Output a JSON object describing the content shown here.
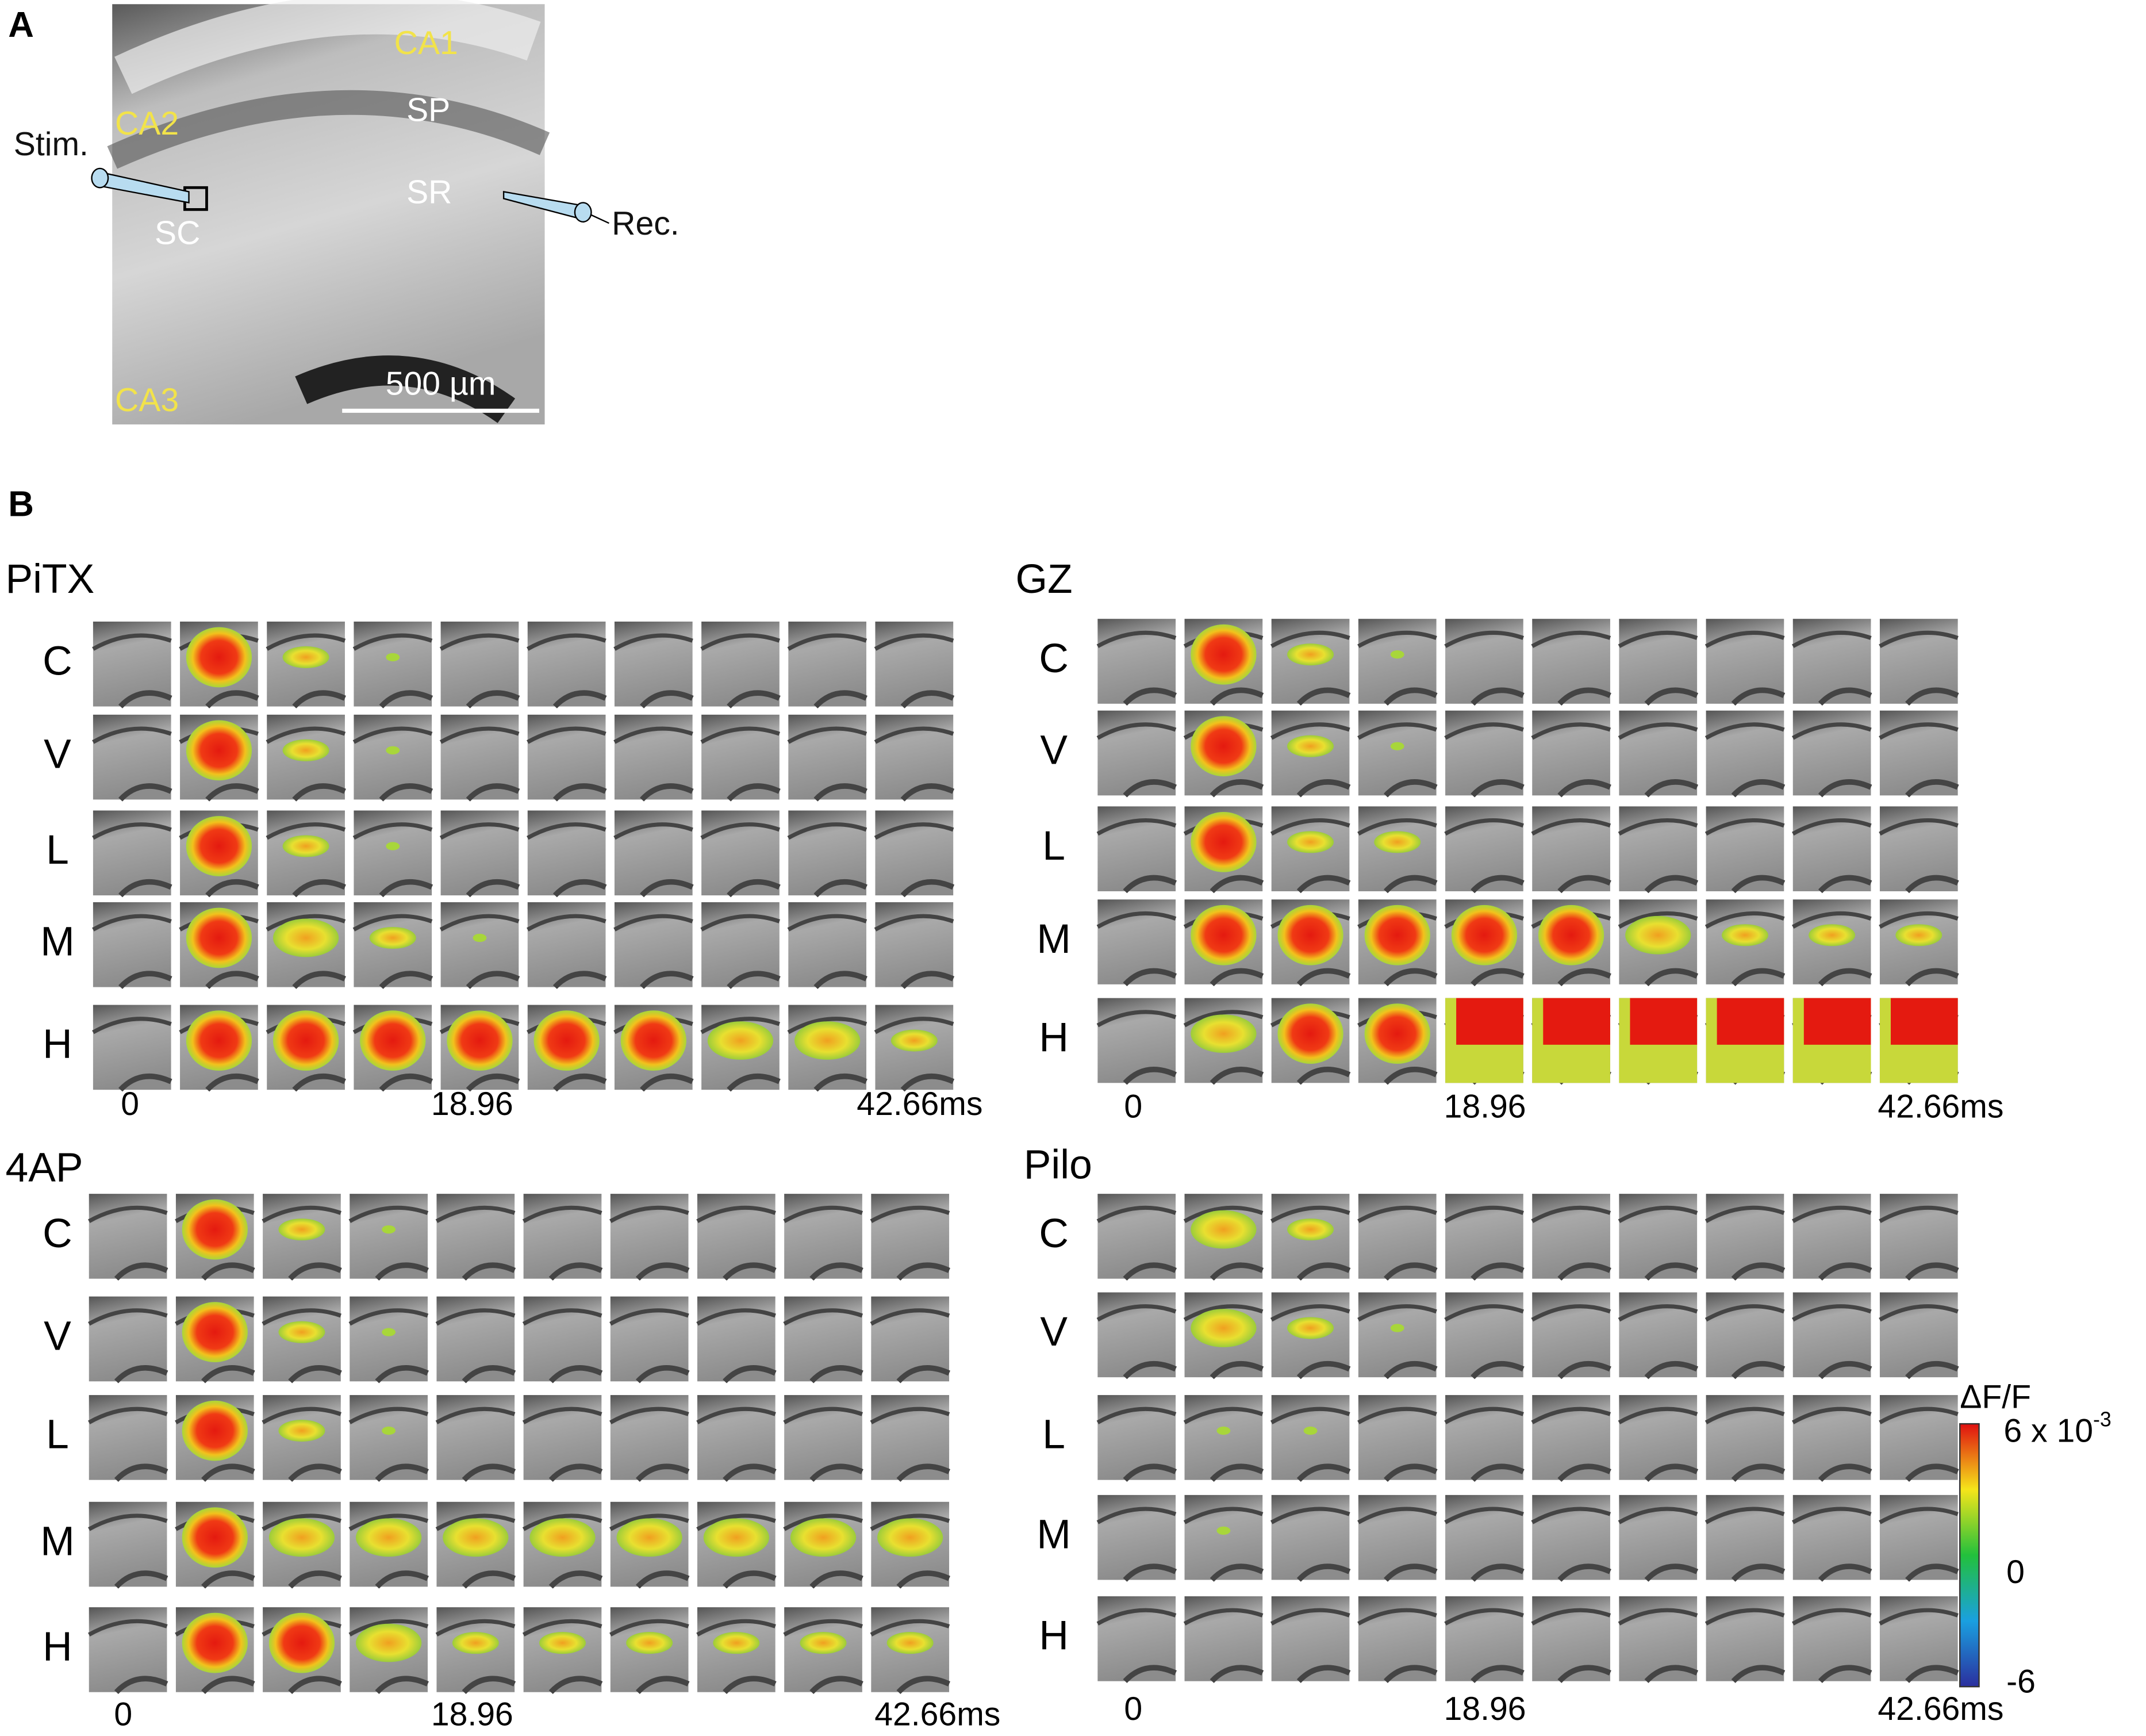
{
  "panel_a": {
    "label": "A",
    "regions": [
      "CA1",
      "CA2",
      "CA3"
    ],
    "layers": [
      "SP",
      "SR",
      "SC"
    ],
    "stim": "Stim.",
    "rec": "Rec.",
    "scale_bar": "500 µm"
  },
  "panel_b": {
    "label": "B",
    "groups": [
      {
        "title": "PiTX",
        "rows": [
          "C",
          "V",
          "L",
          "M",
          "H"
        ],
        "times": [
          "0",
          "18.96",
          "42.66ms"
        ]
      },
      {
        "title": "GZ",
        "rows": [
          "C",
          "V",
          "L",
          "M",
          "H"
        ],
        "times": [
          "0",
          "18.96",
          "42.66ms"
        ]
      },
      {
        "title": "4AP",
        "rows": [
          "C",
          "V",
          "L",
          "M",
          "H"
        ],
        "times": [
          "0",
          "18.96",
          "42.66ms"
        ]
      },
      {
        "title": "Pilo",
        "rows": [
          "C",
          "V",
          "L",
          "M",
          "H"
        ],
        "times": [
          "0",
          "18.96",
          "42.66ms"
        ]
      }
    ],
    "colorbar": {
      "title": "ΔF/F",
      "max_label": "6 x 10",
      "max_exponent": "-3",
      "mid_label": "0",
      "min_label": "-6"
    }
  }
}
